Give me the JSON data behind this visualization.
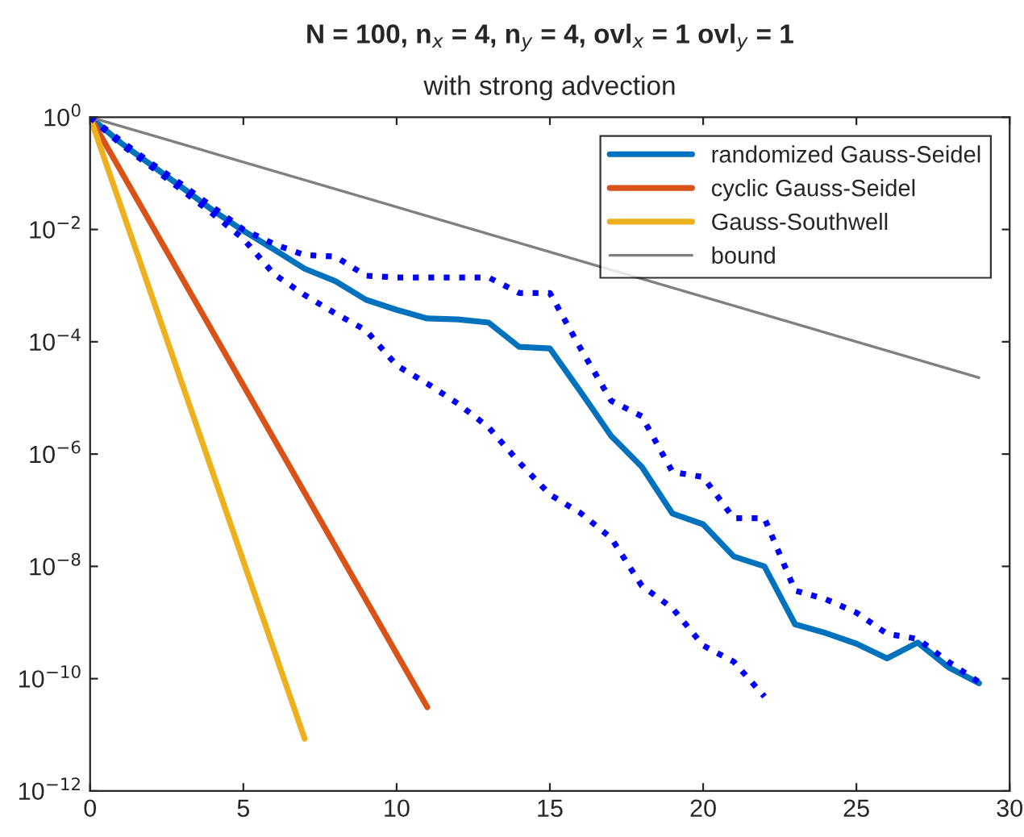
{
  "chart_data": {
    "type": "line",
    "title": "N = 100, n$_{x}$ = 4, n$_{y}$ = 4, ovl$_{x}$ = 1 ovl$_{y}$ = 1",
    "subtitle": "with strong advection",
    "series": [
      {
        "name": "randomized Gauss-Seidel",
        "color": "#0072bd",
        "line_style": "solid",
        "x": [
          0,
          1,
          2,
          3,
          4,
          5,
          6,
          7,
          8,
          9,
          10,
          11,
          12,
          13,
          14,
          15,
          16,
          17,
          18,
          19,
          20,
          21,
          22,
          23,
          24,
          25,
          26,
          27,
          28,
          29
        ],
        "values": [
          1,
          0.35,
          0.14,
          0.056,
          0.022,
          0.0095,
          0.0044,
          0.002,
          0.0012,
          0.00056,
          0.00037,
          0.00026,
          0.00025,
          0.00022,
          8.1e-05,
          7.6e-05,
          1.3e-05,
          2.1e-06,
          5.9e-07,
          8.7e-08,
          5.6e-08,
          1.5e-08,
          1e-08,
          9.3e-10,
          6.5e-10,
          4.2e-10,
          2.3e-10,
          4.4e-10,
          1.6e-10,
          8.3e-11
        ]
      },
      {
        "name": "cyclic Gauss-Seidel",
        "color": "#d95319",
        "line_style": "solid",
        "x": [
          0,
          11
        ],
        "values": [
          1,
          3.1e-11
        ]
      },
      {
        "name": "Gauss-Southwell",
        "color": "#edb120",
        "line_style": "solid",
        "x": [
          0,
          7
        ],
        "values": [
          1,
          8.5e-12
        ]
      },
      {
        "name": "bound",
        "color": "#808080",
        "line_style": "solid",
        "x": [
          0,
          29
        ],
        "values": [
          1,
          2.3e-05
        ]
      },
      {
        "color": "#0000ff",
        "line_style": "dotted",
        "x": [
          0,
          1,
          2,
          3,
          4,
          5,
          6,
          7,
          8,
          9,
          10,
          11,
          12,
          13,
          14,
          15,
          16,
          17,
          18,
          19,
          20,
          21,
          22,
          23,
          24,
          25,
          26,
          27,
          28,
          29
        ],
        "values": [
          1,
          0.38,
          0.15,
          0.063,
          0.025,
          0.01,
          0.0055,
          0.0035,
          0.0033,
          0.0015,
          0.0014,
          0.0014,
          0.0014,
          0.0014,
          0.00074,
          0.00074,
          7.6e-05,
          8.9e-06,
          4.7e-06,
          4.8e-07,
          3.9e-07,
          7.2e-08,
          7.2e-08,
          3.7e-09,
          2.6e-09,
          1.5e-09,
          6.3e-10,
          5.1e-10,
          2e-10,
          8.7e-11
        ]
      },
      {
        "color": "#0000ff",
        "line_style": "dotted",
        "x": [
          0,
          1,
          2,
          3,
          4,
          5,
          6,
          7,
          8,
          9,
          10,
          11,
          12,
          13,
          14,
          15,
          16,
          17,
          18,
          19,
          20,
          21,
          22
        ],
        "values": [
          1,
          0.33,
          0.13,
          0.05,
          0.019,
          0.0068,
          0.0016,
          0.00068,
          0.00032,
          0.00016,
          3.8e-05,
          1.8e-05,
          7.9e-06,
          3e-06,
          7.1e-07,
          1.9e-07,
          8.9e-08,
          3.2e-08,
          4.5e-09,
          1.8e-09,
          3.9e-10,
          2e-10,
          4.8e-11
        ]
      }
    ],
    "log": "y",
    "xlim": [
      0,
      30
    ],
    "xticks": [
      0,
      5,
      10,
      15,
      20,
      25,
      30
    ],
    "ylim": [
      1e-12,
      1
    ],
    "yticks": [
      {
        "value": 1e-12,
        "label": "10$^{−12}$"
      },
      {
        "value": 1e-10,
        "label": "10$^{−10}$"
      },
      {
        "value": 1e-08,
        "label": "10$^{−8}$"
      },
      {
        "value": 1e-06,
        "label": "10$^{−6}$"
      },
      {
        "value": 0.0001,
        "label": "10$^{−4}$"
      },
      {
        "value": 0.01,
        "label": "10$^{−2}$"
      },
      {
        "value": 1,
        "label": "10$^{0}$"
      }
    ],
    "grid": false,
    "legend": "top right"
  }
}
